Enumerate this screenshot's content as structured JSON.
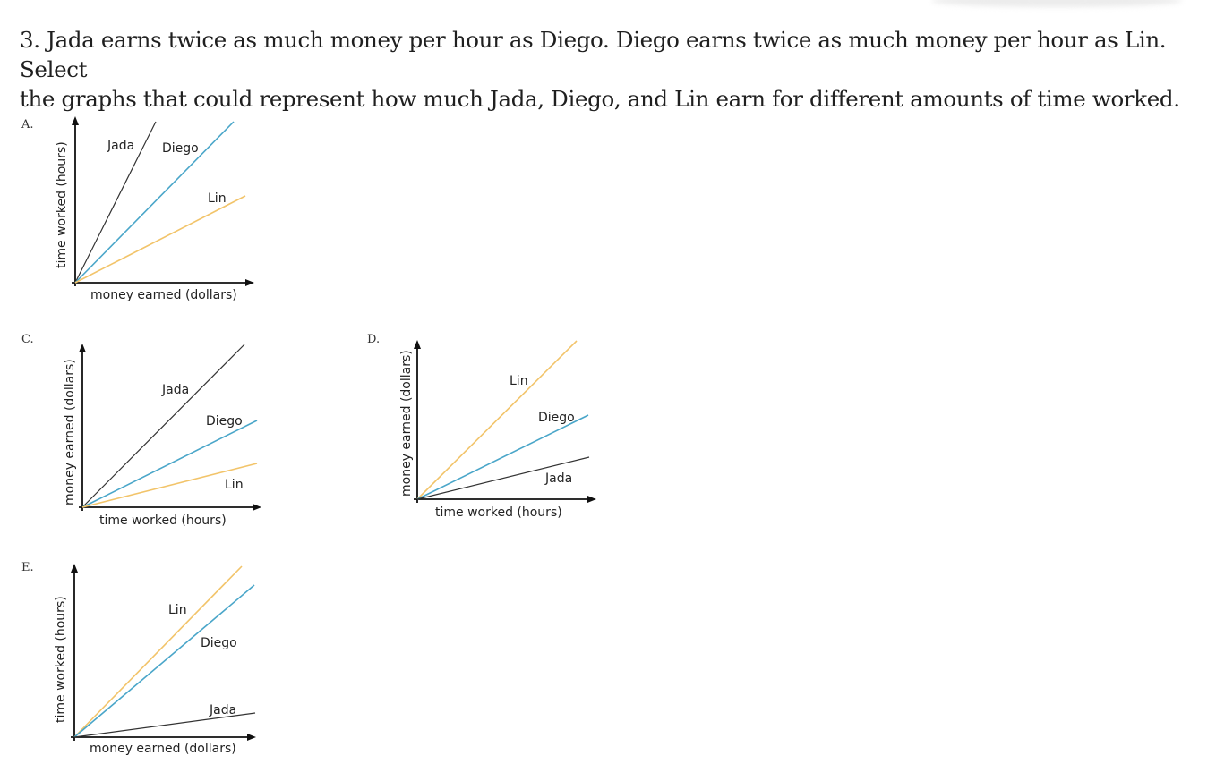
{
  "question": {
    "line1": "3. Jada earns twice as much money per hour as Diego. Diego earns twice as much money per hour as Lin. Select",
    "line2": "the graphs that could represent how much Jada, Diego, and Lin earn for different amounts of time worked."
  },
  "colors": {
    "jada": "#333333",
    "diego": "#4aa6c9",
    "lin": "#f2c46a"
  },
  "graphs": [
    {
      "letter": "A.",
      "xlabel": "money earned (dollars)",
      "ylabel": "time worked (hours)",
      "lines": [
        {
          "name": "Jada",
          "color": "jada"
        },
        {
          "name": "Diego",
          "color": "diego"
        },
        {
          "name": "Lin",
          "color": "lin"
        }
      ]
    },
    {
      "letter": "C.",
      "xlabel": "time worked (hours)",
      "ylabel": "money earned (dollars)",
      "lines": [
        {
          "name": "Jada",
          "color": "jada"
        },
        {
          "name": "Diego",
          "color": "diego"
        },
        {
          "name": "Lin",
          "color": "lin"
        }
      ]
    },
    {
      "letter": "D.",
      "xlabel": "time worked (hours)",
      "ylabel": "money earned (dollars)",
      "lines": [
        {
          "name": "Lin",
          "color": "lin"
        },
        {
          "name": "Diego",
          "color": "diego"
        },
        {
          "name": "Jada",
          "color": "jada"
        }
      ]
    },
    {
      "letter": "E.",
      "xlabel": "money earned (dollars)",
      "ylabel": "time worked (hours)",
      "lines": [
        {
          "name": "Lin",
          "color": "lin"
        },
        {
          "name": "Diego",
          "color": "diego"
        },
        {
          "name": "Jada",
          "color": "jada"
        }
      ]
    }
  ]
}
